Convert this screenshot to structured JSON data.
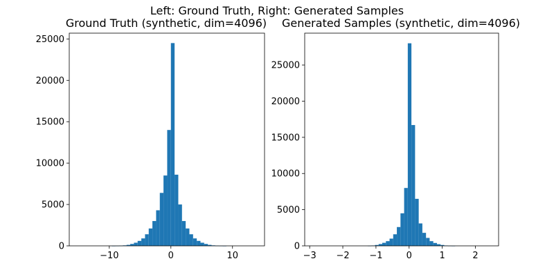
{
  "figure": {
    "suptitle": "Left: Ground Truth, Right: Generated Samples"
  },
  "chart_data": [
    {
      "type": "bar",
      "title": "Ground Truth (synthetic, dim=4096)",
      "xlabel": "",
      "ylabel": "",
      "color": "#1f77b4",
      "xlim": [
        -16.5,
        15.2
      ],
      "ylim": [
        0,
        25700
      ],
      "xticks": [
        -10,
        0,
        10
      ],
      "yticks": [
        0,
        5000,
        10000,
        15000,
        20000,
        25000
      ],
      "bin_edges": [
        -15.0,
        -14.4,
        -13.8,
        -13.2,
        -12.6,
        -12.0,
        -11.4,
        -10.8,
        -10.2,
        -9.6,
        -9.0,
        -8.4,
        -7.8,
        -7.2,
        -6.6,
        -6.0,
        -5.4,
        -4.8,
        -4.2,
        -3.6,
        -3.0,
        -2.4,
        -1.8,
        -1.2,
        -0.6,
        0.0,
        0.6,
        1.2,
        1.8,
        2.4,
        3.0,
        3.6,
        4.2,
        4.8,
        5.4,
        6.0,
        6.6,
        7.2,
        7.8,
        8.4,
        9.0,
        9.6,
        10.2,
        10.8,
        11.4,
        12.0,
        12.6,
        13.2,
        13.8
      ],
      "counts": [
        0,
        0,
        0,
        0,
        0,
        0,
        0,
        0,
        0,
        2,
        10,
        25,
        60,
        120,
        230,
        380,
        600,
        900,
        1400,
        2100,
        3000,
        4300,
        6400,
        8500,
        14000,
        24500,
        8600,
        5000,
        3000,
        2100,
        1400,
        900,
        600,
        380,
        230,
        120,
        60,
        25,
        10,
        2,
        0,
        0,
        0,
        0,
        0,
        0,
        0,
        0
      ]
    },
    {
      "type": "bar",
      "title": "Generated Samples (synthetic, dim=4096)",
      "xlabel": "",
      "ylabel": "",
      "color": "#1f77b4",
      "xlim": [
        -3.15,
        2.7
      ],
      "ylim": [
        0,
        29400
      ],
      "xticks": [
        -3,
        -2,
        -1,
        0,
        1,
        2
      ],
      "yticks": [
        0,
        5000,
        10000,
        15000,
        20000,
        25000
      ],
      "bin_edges": [
        -2.9,
        -2.79,
        -2.68,
        -2.57,
        -2.46,
        -2.35,
        -2.24,
        -2.13,
        -2.02,
        -1.91,
        -1.8,
        -1.69,
        -1.58,
        -1.47,
        -1.36,
        -1.25,
        -1.14,
        -1.03,
        -0.92,
        -0.81,
        -0.7,
        -0.59,
        -0.48,
        -0.37,
        -0.26,
        -0.15,
        -0.04,
        0.07,
        0.18,
        0.29,
        0.4,
        0.51,
        0.62,
        0.73,
        0.84,
        0.95,
        1.06,
        1.17,
        1.28,
        1.39,
        1.5,
        1.61,
        1.72,
        1.83,
        1.94,
        2.05,
        2.16,
        2.27,
        2.38,
        2.49
      ],
      "counts": [
        0,
        0,
        0,
        0,
        0,
        0,
        0,
        0,
        0,
        0,
        0,
        0,
        0,
        0,
        0,
        15,
        50,
        120,
        250,
        420,
        650,
        1000,
        1600,
        2600,
        4500,
        8000,
        28000,
        16700,
        6500,
        3100,
        1800,
        1100,
        650,
        400,
        230,
        120,
        50,
        15,
        5,
        0,
        0,
        0,
        0,
        0,
        0,
        0,
        0,
        0,
        0
      ]
    }
  ]
}
